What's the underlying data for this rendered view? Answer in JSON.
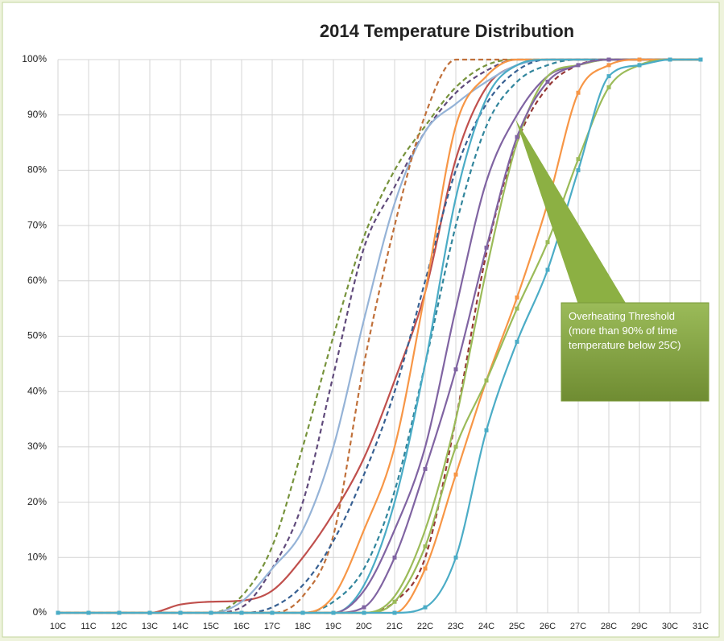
{
  "chart_data": {
    "type": "line",
    "title": "2014 Temperature Distribution",
    "x": [
      10,
      11,
      12,
      13,
      14,
      15,
      16,
      17,
      18,
      19,
      20,
      21,
      22,
      23,
      24,
      25,
      26,
      27,
      28,
      29,
      30,
      31
    ],
    "xlim": [
      10,
      31
    ],
    "xticks": [
      {
        "value": 10,
        "label": "10C"
      },
      {
        "value": 11,
        "label": "11C"
      },
      {
        "value": 12,
        "label": "12C"
      },
      {
        "value": 13,
        "label": "13C"
      },
      {
        "value": 14,
        "label": "14C"
      },
      {
        "value": 15,
        "label": "15C"
      },
      {
        "value": 16,
        "label": "16C"
      },
      {
        "value": 17,
        "label": "17C"
      },
      {
        "value": 18,
        "label": "18C"
      },
      {
        "value": 19,
        "label": "19C"
      },
      {
        "value": 20,
        "label": "20C"
      },
      {
        "value": 21,
        "label": "21C"
      },
      {
        "value": 22,
        "label": "22C"
      },
      {
        "value": 23,
        "label": "23C"
      },
      {
        "value": 24,
        "label": "24C"
      },
      {
        "value": 25,
        "label": "25C"
      },
      {
        "value": 26,
        "label": "26C"
      },
      {
        "value": 27,
        "label": "27C"
      },
      {
        "value": 28,
        "label": "28C"
      },
      {
        "value": 29,
        "label": "29C"
      },
      {
        "value": 30,
        "label": "30C"
      },
      {
        "value": 31,
        "label": "31C"
      }
    ],
    "ylim": [
      0,
      100
    ],
    "yticks": [
      {
        "value": 0,
        "label": "0%"
      },
      {
        "value": 10,
        "label": "10%"
      },
      {
        "value": 20,
        "label": "20%"
      },
      {
        "value": 30,
        "label": "30%"
      },
      {
        "value": 40,
        "label": "40%"
      },
      {
        "value": 50,
        "label": "50%"
      },
      {
        "value": 60,
        "label": "60%"
      },
      {
        "value": 70,
        "label": "70%"
      },
      {
        "value": 80,
        "label": "80%"
      },
      {
        "value": 90,
        "label": "90%"
      },
      {
        "value": 100,
        "label": "100%"
      }
    ],
    "grid": true,
    "annotation": "Overheating Threshold (more than 90% of time temperature below 25C)",
    "series": [
      {
        "color": "#c0504d",
        "dash": false,
        "marker": false,
        "values": [
          0,
          0,
          0,
          0,
          1.5,
          2,
          2.2,
          4,
          10,
          18,
          28,
          42,
          58,
          82,
          95,
          99,
          100,
          100,
          100,
          100,
          100,
          100
        ]
      },
      {
        "color": "#77933c",
        "dash": true,
        "marker": false,
        "values": [
          0,
          0,
          0,
          0,
          0,
          0,
          3,
          12,
          30,
          50,
          68,
          80,
          88,
          95,
          99,
          100,
          100,
          100,
          100,
          100,
          100,
          100
        ]
      },
      {
        "color": "#604a7b",
        "dash": true,
        "marker": false,
        "values": [
          0,
          0,
          0,
          0,
          0,
          0,
          1,
          8,
          20,
          43,
          66,
          77,
          87,
          94,
          98,
          100,
          100,
          100,
          100,
          100,
          100,
          100
        ]
      },
      {
        "color": "#95b3d7",
        "dash": false,
        "marker": false,
        "values": [
          0,
          0,
          0,
          0,
          0,
          0,
          2,
          8,
          15,
          30,
          53,
          74,
          87,
          92,
          96,
          99,
          100,
          100,
          100,
          100,
          100,
          100
        ]
      },
      {
        "color": "#c0703a",
        "dash": true,
        "marker": false,
        "values": [
          0,
          0,
          0,
          0,
          0,
          0,
          0,
          0,
          3,
          14,
          45,
          70,
          90,
          100,
          100,
          100,
          100,
          100,
          100,
          100,
          100,
          100
        ]
      },
      {
        "color": "#376092",
        "dash": true,
        "marker": false,
        "values": [
          0,
          0,
          0,
          0,
          0,
          0,
          0,
          1,
          5,
          13,
          25,
          40,
          60,
          80,
          92,
          98,
          100,
          100,
          100,
          100,
          100,
          100
        ]
      },
      {
        "color": "#31859c",
        "dash": true,
        "marker": false,
        "values": [
          0,
          0,
          0,
          0,
          0,
          0,
          0,
          0,
          0,
          2,
          8,
          22,
          45,
          70,
          88,
          96,
          99,
          100,
          100,
          100,
          100,
          100
        ]
      },
      {
        "color": "#f79646",
        "dash": false,
        "marker": false,
        "values": [
          0,
          0,
          0,
          0,
          0,
          0,
          0,
          0,
          0,
          3,
          15,
          30,
          58,
          88,
          97,
          100,
          100,
          100,
          100,
          100,
          100,
          100
        ]
      },
      {
        "color": "#4bacc6",
        "dash": false,
        "marker": false,
        "values": [
          0,
          0,
          0,
          0,
          0,
          0,
          0,
          0,
          0,
          0,
          5,
          20,
          45,
          75,
          93,
          99,
          100,
          100,
          100,
          100,
          100,
          100
        ]
      },
      {
        "color": "#8064a2",
        "dash": false,
        "marker": false,
        "values": [
          0,
          0,
          0,
          0,
          0,
          0,
          0,
          0,
          0,
          0,
          4,
          15,
          30,
          55,
          78,
          90,
          97,
          99,
          100,
          100,
          100,
          100
        ]
      },
      {
        "color": "#953735",
        "dash": true,
        "marker": false,
        "values": [
          0,
          0,
          0,
          0,
          0,
          0,
          0,
          0,
          0,
          0,
          0,
          2,
          10,
          35,
          65,
          85,
          95,
          99,
          100,
          100,
          100,
          100
        ]
      },
      {
        "color": "#9bbb59",
        "dash": false,
        "marker": false,
        "values": [
          0,
          0,
          0,
          0,
          0,
          0,
          0,
          0,
          0,
          0,
          0,
          3,
          15,
          35,
          62,
          85,
          97,
          99,
          100,
          100,
          100,
          100
        ]
      },
      {
        "color": "#8064a2",
        "dash": false,
        "marker": true,
        "values": [
          0,
          0,
          0,
          0,
          0,
          0,
          0,
          0,
          0,
          0,
          1,
          10,
          26,
          44,
          66,
          86,
          96,
          99,
          100,
          100,
          100,
          100
        ]
      },
      {
        "color": "#f79646",
        "dash": false,
        "marker": true,
        "values": [
          0,
          0,
          0,
          0,
          0,
          0,
          0,
          0,
          0,
          0,
          0,
          0,
          8,
          25,
          42,
          57,
          74,
          94,
          99,
          100,
          100,
          100
        ]
      },
      {
        "color": "#9bbb59",
        "dash": false,
        "marker": true,
        "values": [
          0,
          0,
          0,
          0,
          0,
          0,
          0,
          0,
          0,
          0,
          0,
          2,
          12,
          30,
          42,
          55,
          67,
          82,
          95,
          99,
          100,
          100
        ]
      },
      {
        "color": "#4bacc6",
        "dash": false,
        "marker": true,
        "values": [
          0,
          0,
          0,
          0,
          0,
          0,
          0,
          0,
          0,
          0,
          0,
          0,
          1,
          10,
          33,
          49,
          62,
          80,
          97,
          99,
          100,
          100
        ]
      }
    ]
  }
}
